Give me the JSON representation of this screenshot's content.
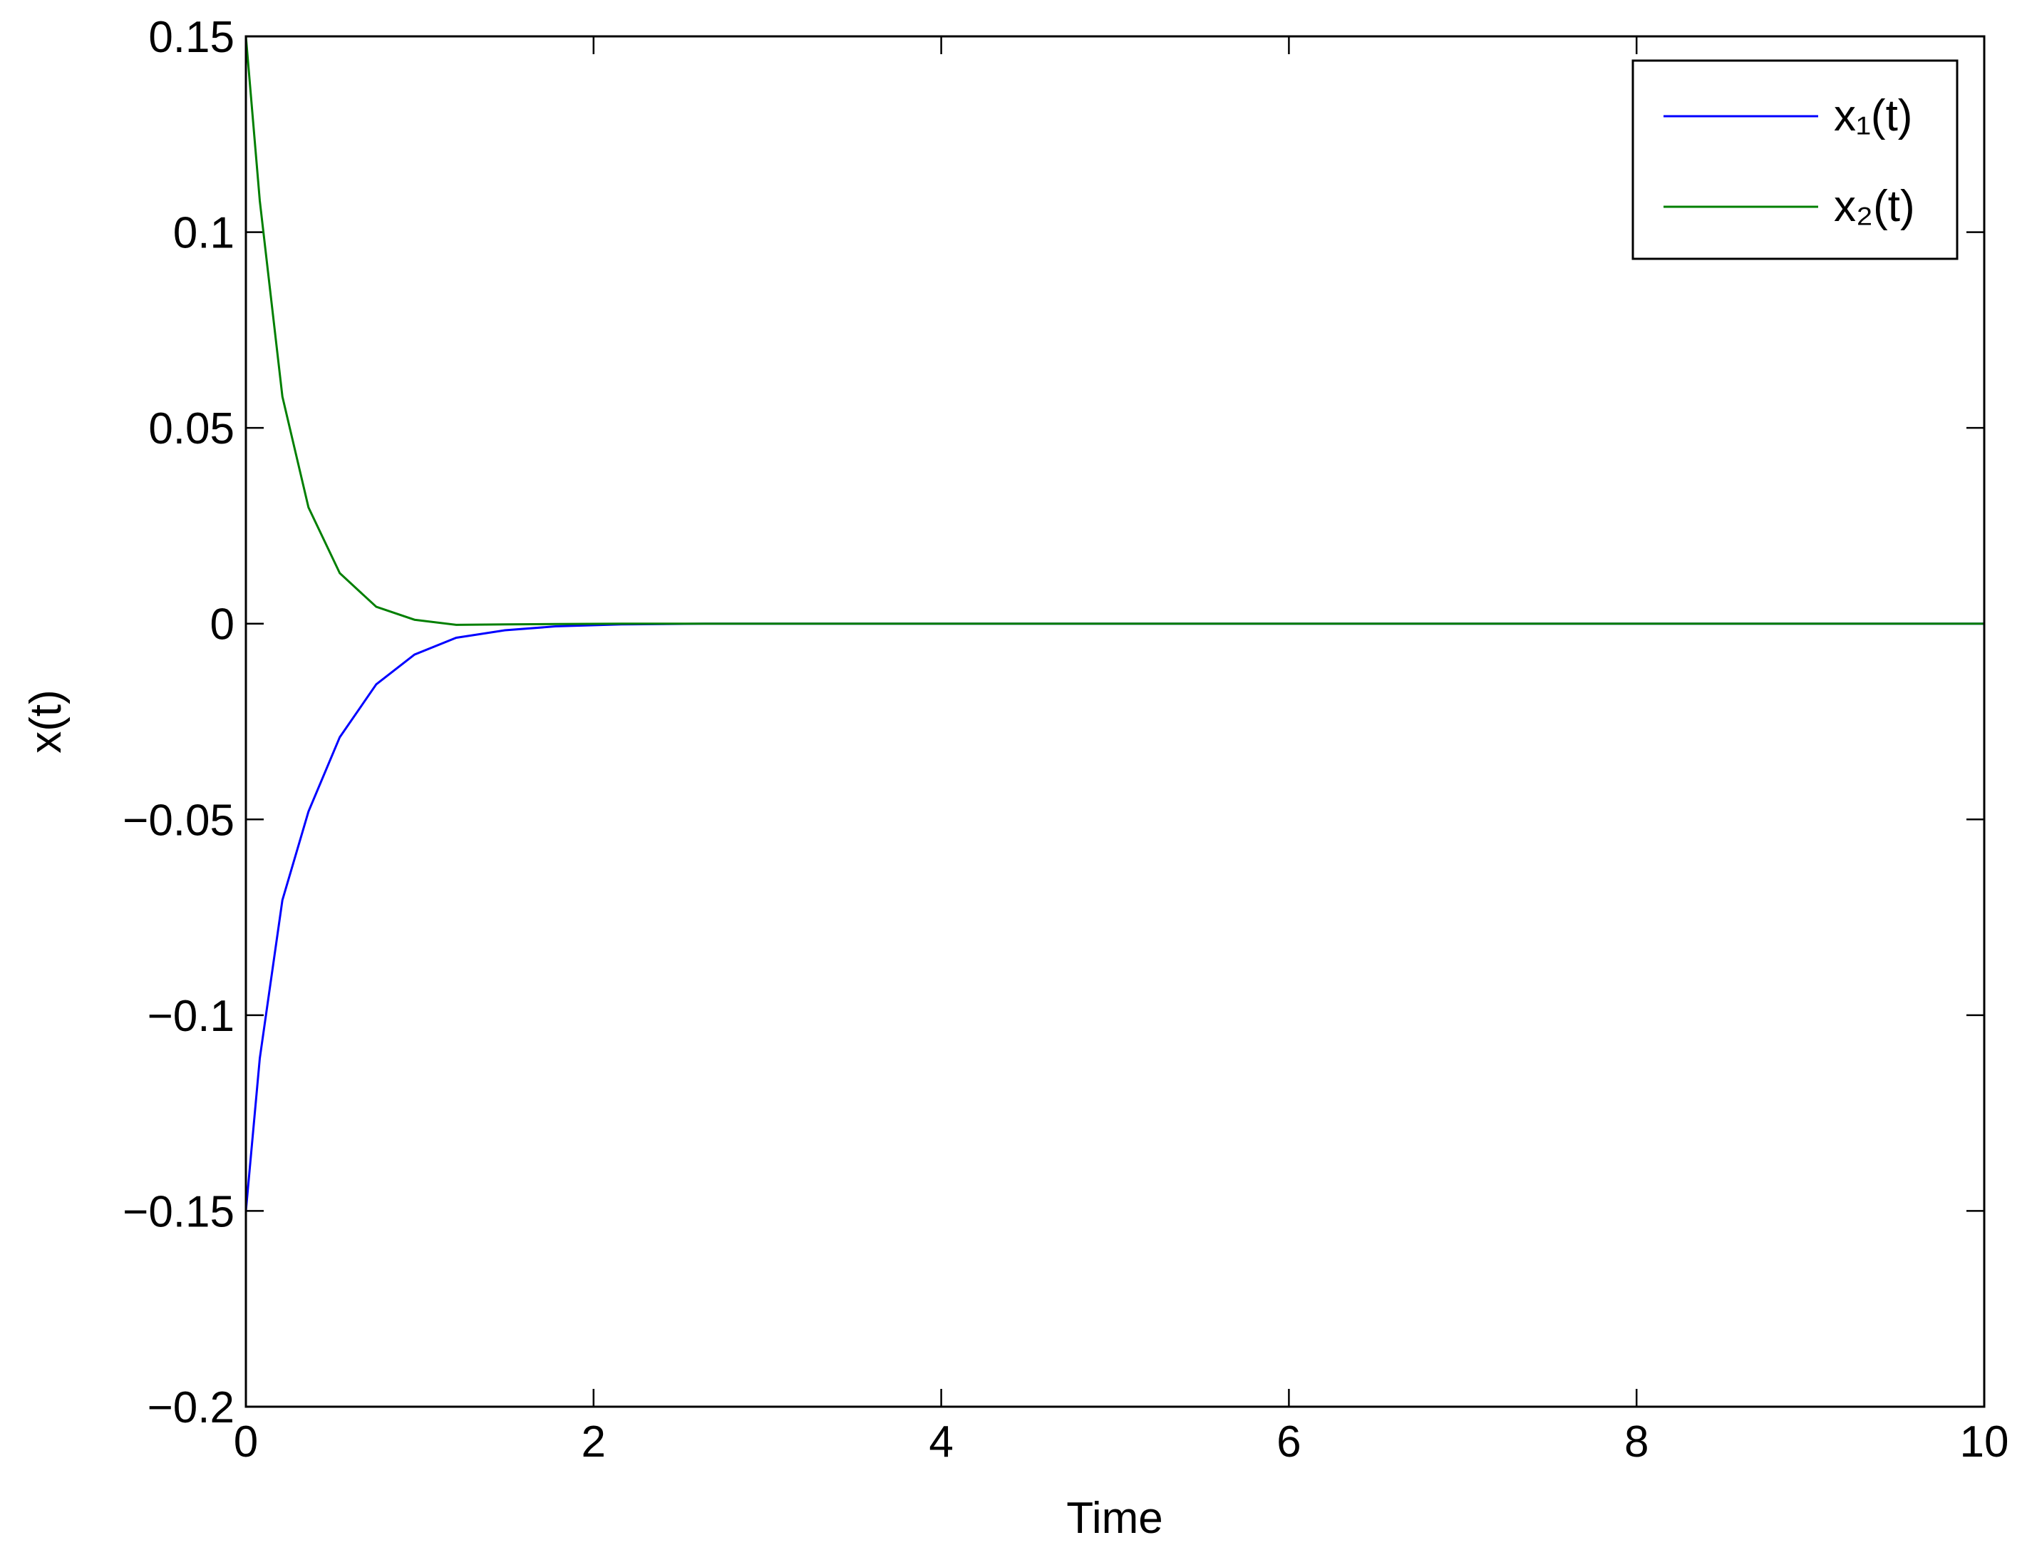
{
  "chart_data": {
    "type": "line",
    "xlabel": "Time",
    "ylabel": "x(t)",
    "x": [
      0,
      0.08,
      0.21,
      0.36,
      0.54,
      0.75,
      0.97,
      1.21,
      1.49,
      1.78,
      2.16,
      2.64,
      10
    ],
    "series": [
      {
        "name": "x₁(t)",
        "color": "#0000ff",
        "values": [
          -0.15,
          -0.111,
          -0.0706,
          -0.048,
          -0.029,
          -0.0155,
          -0.0079,
          -0.0036,
          -0.0017,
          -0.0007,
          -0.0002,
          0,
          0
        ]
      },
      {
        "name": "x₂(t)",
        "color": "#007f00",
        "values": [
          0.15,
          0.108,
          0.058,
          0.0297,
          0.0129,
          0.0043,
          0.001,
          -0.0003,
          -0.0002,
          -0.0001,
          0,
          0,
          0
        ]
      }
    ],
    "xlim": [
      0,
      10
    ],
    "xticks": [
      0,
      2,
      4,
      6,
      8,
      10
    ],
    "ylim": [
      -0.2,
      0.15
    ],
    "yticks": [
      {
        "value": -0.2,
        "label": "−0.2"
      },
      {
        "value": -0.15,
        "label": "−0.15"
      },
      {
        "value": -0.1,
        "label": "−0.1"
      },
      {
        "value": -0.05,
        "label": "−0.05"
      },
      0,
      0.05,
      0.1,
      0.15
    ],
    "legend": "upper right",
    "grid": false
  }
}
